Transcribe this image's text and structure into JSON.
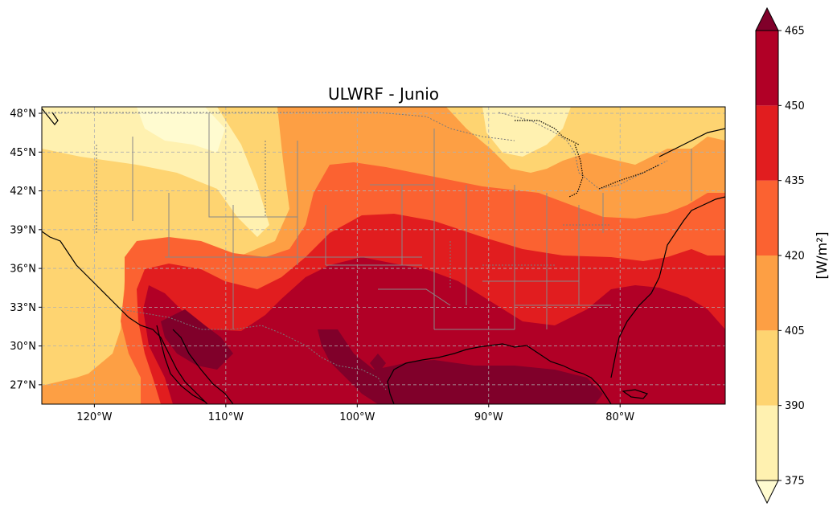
{
  "title": "ULWRF - Junio",
  "map": {
    "lon_range": [
      -124,
      -72
    ],
    "lat_range": [
      25.5,
      48.5
    ],
    "x_ticks": [
      {
        "lon": -120,
        "label": "120°W"
      },
      {
        "lon": -110,
        "label": "110°W"
      },
      {
        "lon": -100,
        "label": "100°W"
      },
      {
        "lon": -90,
        "label": "90°W"
      },
      {
        "lon": -80,
        "label": "80°W"
      }
    ],
    "y_ticks": [
      {
        "lat": 48,
        "label": "48°N"
      },
      {
        "lat": 45,
        "label": "45°N"
      },
      {
        "lat": 42,
        "label": "42°N"
      },
      {
        "lat": 39,
        "label": "39°N"
      },
      {
        "lat": 36,
        "label": "36°N"
      },
      {
        "lat": 33,
        "label": "33°N"
      },
      {
        "lat": 30,
        "label": "30°N"
      },
      {
        "lat": 27,
        "label": "27°N"
      }
    ],
    "gridlines": true
  },
  "colorbar": {
    "label": "[W/m²]",
    "ticks": [
      "375",
      "390",
      "405",
      "420",
      "435",
      "450",
      "465"
    ],
    "extend": "both",
    "levels": [
      {
        "range": [
          360,
          375
        ],
        "color": "#fffbd0"
      },
      {
        "range": [
          375,
          390
        ],
        "color": "#fff1b0"
      },
      {
        "range": [
          390,
          405
        ],
        "color": "#fed471"
      },
      {
        "range": [
          405,
          420
        ],
        "color": "#fd9f44"
      },
      {
        "range": [
          420,
          435
        ],
        "color": "#fb6231"
      },
      {
        "range": [
          435,
          450
        ],
        "color": "#e11d1f"
      },
      {
        "range": [
          450,
          465
        ],
        "color": "#b10026"
      },
      {
        "range": [
          465,
          480
        ],
        "color": "#80002a"
      }
    ]
  }
}
